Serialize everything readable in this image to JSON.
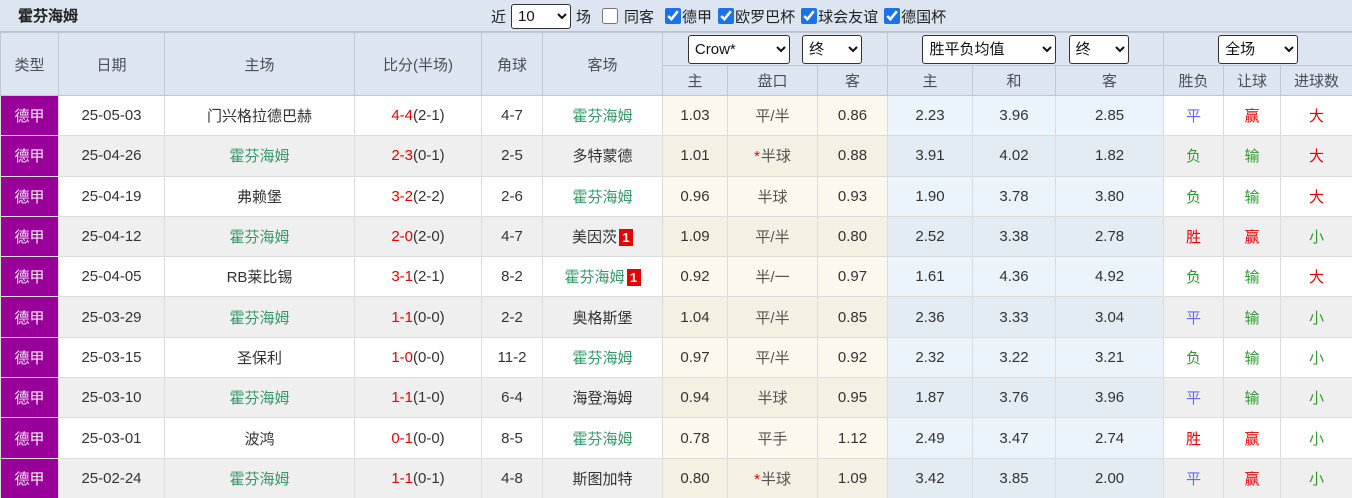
{
  "title": "霍芬海姆",
  "colors": {
    "accent_purple": "#990099",
    "self_team_green": "#339966",
    "score_red": "#e60000",
    "result_red": "#e60000",
    "result_green": "#339933",
    "result_blue": "#6666ff",
    "badge_red": "#e60000",
    "checkbox_blue": "#1a73e8",
    "header_bg": "#dde5f1"
  },
  "toolbar": {
    "recent_label": "近",
    "recent_select_value": "10",
    "matches_label": "场",
    "same_away_label": "同客",
    "same_away_checked": false,
    "leagues": [
      {
        "label": "德甲",
        "checked": true
      },
      {
        "label": "欧罗巴杯",
        "checked": true
      },
      {
        "label": "球会友谊",
        "checked": true
      },
      {
        "label": "德国杯",
        "checked": true
      }
    ]
  },
  "table": {
    "left_headers": [
      "类型",
      "日期",
      "主场",
      "比分(半场)",
      "角球",
      "客场"
    ],
    "groups": {
      "odds": {
        "select1": "Crow*",
        "select2": "终",
        "cols": [
          "主",
          "盘口",
          "客"
        ]
      },
      "avg": {
        "select1": "胜平负均值",
        "select2": "终",
        "cols": [
          "主",
          "和",
          "客"
        ]
      },
      "fulltime": {
        "select1": "全场",
        "cols": [
          "胜负",
          "让球",
          "进球数"
        ]
      }
    },
    "rows": [
      {
        "league": "德甲",
        "date": "25-05-03",
        "home": "门兴格拉德巴赫",
        "home_is_self": false,
        "home_badge": "",
        "score": "4-4",
        "half": "(2-1)",
        "corner": "4-7",
        "away": "霍芬海姆",
        "away_is_self": true,
        "away_badge": "",
        "odds": [
          "1.03",
          "平/半",
          "0.86"
        ],
        "handicap_star": false,
        "avg": [
          "2.23",
          "3.96",
          "2.85"
        ],
        "result": {
          "text": "平",
          "color": "blue"
        },
        "let": {
          "text": "赢",
          "color": "red"
        },
        "goals": {
          "text": "大",
          "color": "red"
        }
      },
      {
        "league": "德甲",
        "date": "25-04-26",
        "home": "霍芬海姆",
        "home_is_self": true,
        "home_badge": "",
        "score": "2-3",
        "half": "(0-1)",
        "corner": "2-5",
        "away": "多特蒙德",
        "away_is_self": false,
        "away_badge": "",
        "odds": [
          "1.01",
          "半球",
          "0.88"
        ],
        "handicap_star": true,
        "avg": [
          "3.91",
          "4.02",
          "1.82"
        ],
        "result": {
          "text": "负",
          "color": "green"
        },
        "let": {
          "text": "输",
          "color": "green"
        },
        "goals": {
          "text": "大",
          "color": "red"
        }
      },
      {
        "league": "德甲",
        "date": "25-04-19",
        "home": "弗赖堡",
        "home_is_self": false,
        "home_badge": "",
        "score": "3-2",
        "half": "(2-2)",
        "corner": "2-6",
        "away": "霍芬海姆",
        "away_is_self": true,
        "away_badge": "",
        "odds": [
          "0.96",
          "半球",
          "0.93"
        ],
        "handicap_star": false,
        "avg": [
          "1.90",
          "3.78",
          "3.80"
        ],
        "result": {
          "text": "负",
          "color": "green"
        },
        "let": {
          "text": "输",
          "color": "green"
        },
        "goals": {
          "text": "大",
          "color": "red"
        }
      },
      {
        "league": "德甲",
        "date": "25-04-12",
        "home": "霍芬海姆",
        "home_is_self": true,
        "home_badge": "",
        "score": "2-0",
        "half": "(2-0)",
        "corner": "4-7",
        "away": "美因茨",
        "away_is_self": false,
        "away_badge": "1",
        "odds": [
          "1.09",
          "平/半",
          "0.80"
        ],
        "handicap_star": false,
        "avg": [
          "2.52",
          "3.38",
          "2.78"
        ],
        "result": {
          "text": "胜",
          "color": "red"
        },
        "let": {
          "text": "赢",
          "color": "red"
        },
        "goals": {
          "text": "小",
          "color": "green"
        }
      },
      {
        "league": "德甲",
        "date": "25-04-05",
        "home": "RB莱比锡",
        "home_is_self": false,
        "home_badge": "",
        "score": "3-1",
        "half": "(2-1)",
        "corner": "8-2",
        "away": "霍芬海姆",
        "away_is_self": true,
        "away_badge": "1",
        "odds": [
          "0.92",
          "半/一",
          "0.97"
        ],
        "handicap_star": false,
        "avg": [
          "1.61",
          "4.36",
          "4.92"
        ],
        "result": {
          "text": "负",
          "color": "green"
        },
        "let": {
          "text": "输",
          "color": "green"
        },
        "goals": {
          "text": "大",
          "color": "red"
        }
      },
      {
        "league": "德甲",
        "date": "25-03-29",
        "home": "霍芬海姆",
        "home_is_self": true,
        "home_badge": "",
        "score": "1-1",
        "half": "(0-0)",
        "corner": "2-2",
        "away": "奥格斯堡",
        "away_is_self": false,
        "away_badge": "",
        "odds": [
          "1.04",
          "平/半",
          "0.85"
        ],
        "handicap_star": false,
        "avg": [
          "2.36",
          "3.33",
          "3.04"
        ],
        "result": {
          "text": "平",
          "color": "blue"
        },
        "let": {
          "text": "输",
          "color": "green"
        },
        "goals": {
          "text": "小",
          "color": "green"
        }
      },
      {
        "league": "德甲",
        "date": "25-03-15",
        "home": "圣保利",
        "home_is_self": false,
        "home_badge": "",
        "score": "1-0",
        "half": "(0-0)",
        "corner": "11-2",
        "away": "霍芬海姆",
        "away_is_self": true,
        "away_badge": "",
        "odds": [
          "0.97",
          "平/半",
          "0.92"
        ],
        "handicap_star": false,
        "avg": [
          "2.32",
          "3.22",
          "3.21"
        ],
        "result": {
          "text": "负",
          "color": "green"
        },
        "let": {
          "text": "输",
          "color": "green"
        },
        "goals": {
          "text": "小",
          "color": "green"
        }
      },
      {
        "league": "德甲",
        "date": "25-03-10",
        "home": "霍芬海姆",
        "home_is_self": true,
        "home_badge": "",
        "score": "1-1",
        "half": "(1-0)",
        "corner": "6-4",
        "away": "海登海姆",
        "away_is_self": false,
        "away_badge": "",
        "odds": [
          "0.94",
          "半球",
          "0.95"
        ],
        "handicap_star": false,
        "avg": [
          "1.87",
          "3.76",
          "3.96"
        ],
        "result": {
          "text": "平",
          "color": "blue"
        },
        "let": {
          "text": "输",
          "color": "green"
        },
        "goals": {
          "text": "小",
          "color": "green"
        }
      },
      {
        "league": "德甲",
        "date": "25-03-01",
        "home": "波鸿",
        "home_is_self": false,
        "home_badge": "",
        "score": "0-1",
        "half": "(0-0)",
        "corner": "8-5",
        "away": "霍芬海姆",
        "away_is_self": true,
        "away_badge": "",
        "odds": [
          "0.78",
          "平手",
          "1.12"
        ],
        "handicap_star": false,
        "avg": [
          "2.49",
          "3.47",
          "2.74"
        ],
        "result": {
          "text": "胜",
          "color": "red"
        },
        "let": {
          "text": "赢",
          "color": "red"
        },
        "goals": {
          "text": "小",
          "color": "green"
        }
      },
      {
        "league": "德甲",
        "date": "25-02-24",
        "home": "霍芬海姆",
        "home_is_self": true,
        "home_badge": "",
        "score": "1-1",
        "half": "(0-1)",
        "corner": "4-8",
        "away": "斯图加特",
        "away_is_self": false,
        "away_badge": "",
        "odds": [
          "0.80",
          "半球",
          "1.09"
        ],
        "handicap_star": true,
        "avg": [
          "3.42",
          "3.85",
          "2.00"
        ],
        "result": {
          "text": "平",
          "color": "blue"
        },
        "let": {
          "text": "赢",
          "color": "red"
        },
        "goals": {
          "text": "小",
          "color": "green"
        }
      }
    ]
  }
}
